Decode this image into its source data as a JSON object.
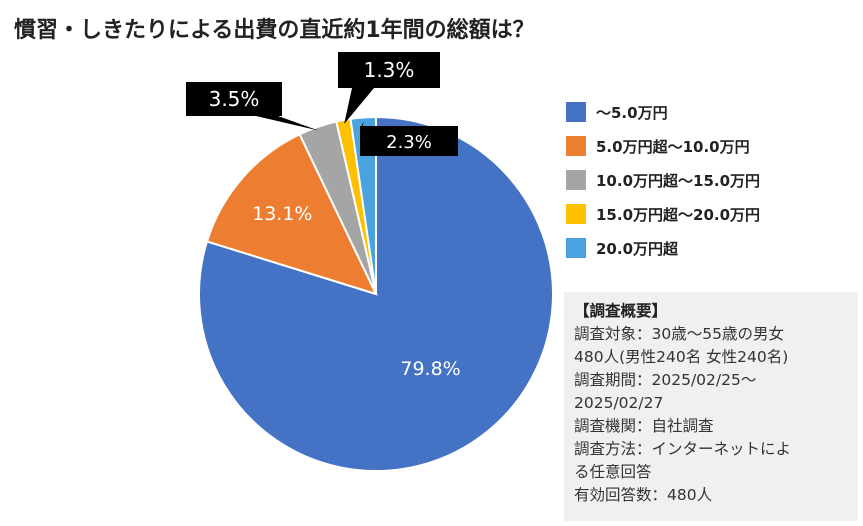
{
  "title": "慣習・しきたりによる出費の直近約1年間の総額は？",
  "chart_data": {
    "type": "pie",
    "title": "慣習・しきたりによる出費の直近約1年間の総額は？",
    "categories": [
      "～5.0万円",
      "5.0万円超～10.0万円",
      "10.0万円超～15.0万円",
      "15.0万円超～20.0万円",
      "20.0万円超"
    ],
    "values": [
      79.8,
      13.1,
      3.5,
      1.3,
      2.3
    ],
    "data_labels": [
      "79.8%",
      "13.1%",
      "3.5%",
      "1.3%",
      "2.3%"
    ],
    "colors": [
      "#4472c4",
      "#ed7d31",
      "#a5a5a5",
      "#ffc000",
      "#4aa3df"
    ],
    "start_angle": 0,
    "direction": "clockwise_from_top",
    "legend_position": "right"
  },
  "legend": [
    {
      "label": "～5.0万円",
      "color": "#4472c4"
    },
    {
      "label": "5.0万円超～10.0万円",
      "color": "#ed7d31"
    },
    {
      "label": "10.0万円超～15.0万円",
      "color": "#a5a5a5"
    },
    {
      "label": "15.0万円超～20.0万円",
      "color": "#ffc000"
    },
    {
      "label": "20.0万円超",
      "color": "#4aa3df"
    }
  ],
  "survey": {
    "heading": "【調査概要】",
    "lines": [
      "調査対象：30歳～55歳の男女",
      "480人(男性240名 女性240名)",
      "調査期間：2025/02/25～",
      "2025/02/27",
      "調査機関：自社調査",
      "調査方法：インターネットによ",
      "る任意回答",
      "有効回答数：480人"
    ]
  }
}
